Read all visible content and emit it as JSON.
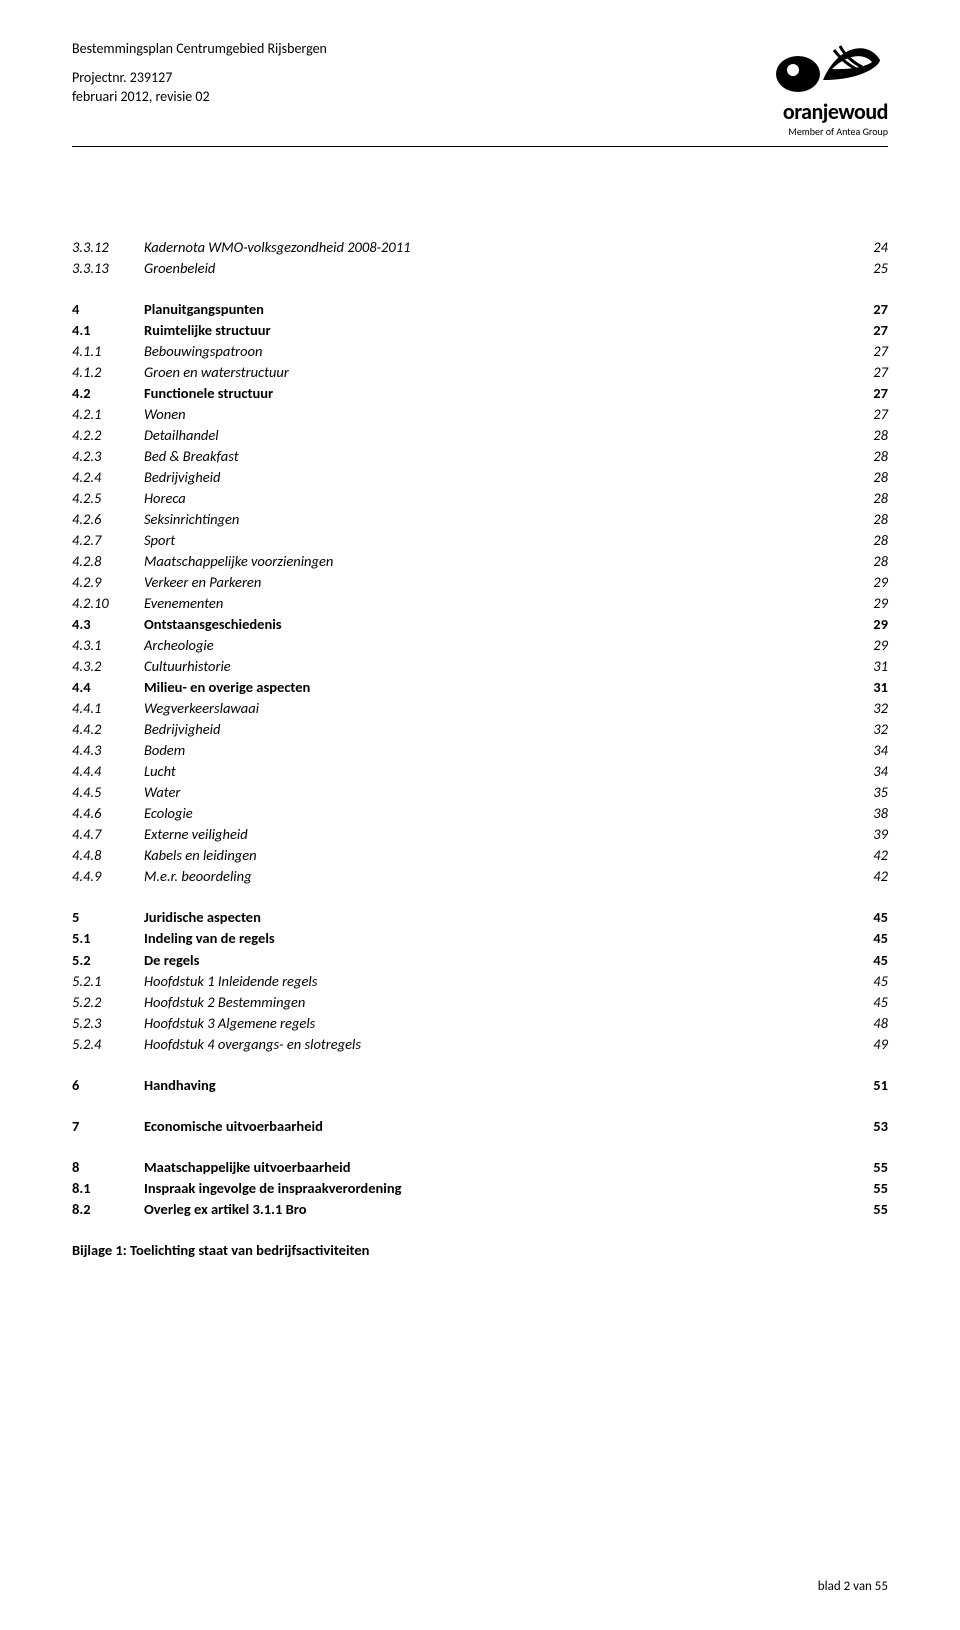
{
  "header": {
    "title": "Bestemmingsplan Centrumgebied Rijsbergen",
    "project": "Projectnr. 239127",
    "date": "februari 2012, revisie 02"
  },
  "logo": {
    "brand": "oranjewoud",
    "sub": "Member of Antea Group",
    "icon_color": "#000000"
  },
  "footer": {
    "text": "blad 2 van 55"
  },
  "toc": [
    {
      "num": "3.3.12",
      "title": "Kadernota WMO-volksgezondheid 2008-2011",
      "page": "24",
      "level": "sub"
    },
    {
      "num": "3.3.13",
      "title": "Groenbeleid",
      "page": "25",
      "level": "sub"
    },
    {
      "num": "4",
      "title": "Planuitgangspunten",
      "page": "27",
      "level": "chapter"
    },
    {
      "num": "4.1",
      "title": "Ruimtelijke structuur",
      "page": "27",
      "level": "section"
    },
    {
      "num": "4.1.1",
      "title": "Bebouwingspatroon",
      "page": "27",
      "level": "sub"
    },
    {
      "num": "4.1.2",
      "title": "Groen en waterstructuur",
      "page": "27",
      "level": "sub"
    },
    {
      "num": "4.2",
      "title": "Functionele structuur",
      "page": "27",
      "level": "section"
    },
    {
      "num": "4.2.1",
      "title": "Wonen",
      "page": "27",
      "level": "sub"
    },
    {
      "num": "4.2.2",
      "title": "Detailhandel",
      "page": "28",
      "level": "sub"
    },
    {
      "num": "4.2.3",
      "title": "Bed & Breakfast",
      "page": "28",
      "level": "sub"
    },
    {
      "num": "4.2.4",
      "title": "Bedrijvigheid",
      "page": "28",
      "level": "sub"
    },
    {
      "num": "4.2.5",
      "title": "Horeca",
      "page": "28",
      "level": "sub"
    },
    {
      "num": "4.2.6",
      "title": "Seksinrichtingen",
      "page": "28",
      "level": "sub"
    },
    {
      "num": "4.2.7",
      "title": "Sport",
      "page": "28",
      "level": "sub"
    },
    {
      "num": "4.2.8",
      "title": "Maatschappelijke voorzieningen",
      "page": "28",
      "level": "sub"
    },
    {
      "num": "4.2.9",
      "title": "Verkeer en Parkeren",
      "page": "29",
      "level": "sub"
    },
    {
      "num": "4.2.10",
      "title": "Evenementen",
      "page": "29",
      "level": "sub"
    },
    {
      "num": "4.3",
      "title": "Ontstaansgeschiedenis",
      "page": "29",
      "level": "section"
    },
    {
      "num": "4.3.1",
      "title": "Archeologie",
      "page": "29",
      "level": "sub"
    },
    {
      "num": "4.3.2",
      "title": "Cultuurhistorie",
      "page": "31",
      "level": "sub"
    },
    {
      "num": "4.4",
      "title": "Milieu- en overige aspecten",
      "page": "31",
      "level": "section"
    },
    {
      "num": "4.4.1",
      "title": "Wegverkeerslawaai",
      "page": "32",
      "level": "sub"
    },
    {
      "num": "4.4.2",
      "title": "Bedrijvigheid",
      "page": "32",
      "level": "sub"
    },
    {
      "num": "4.4.3",
      "title": "Bodem",
      "page": "34",
      "level": "sub"
    },
    {
      "num": "4.4.4",
      "title": "Lucht",
      "page": "34",
      "level": "sub"
    },
    {
      "num": "4.4.5",
      "title": "Water",
      "page": "35",
      "level": "sub"
    },
    {
      "num": "4.4.6",
      "title": "Ecologie",
      "page": "38",
      "level": "sub"
    },
    {
      "num": "4.4.7",
      "title": "Externe veiligheid",
      "page": "39",
      "level": "sub"
    },
    {
      "num": "4.4.8",
      "title": "Kabels en leidingen",
      "page": "42",
      "level": "sub"
    },
    {
      "num": "4.4.9",
      "title": "M.e.r. beoordeling",
      "page": "42",
      "level": "sub"
    },
    {
      "num": "5",
      "title": "Juridische aspecten",
      "page": "45",
      "level": "chapter"
    },
    {
      "num": "5.1",
      "title": "Indeling van de regels",
      "page": "45",
      "level": "section"
    },
    {
      "num": "5.2",
      "title": "De regels",
      "page": "45",
      "level": "section"
    },
    {
      "num": "5.2.1",
      "title": "Hoofdstuk 1 Inleidende regels",
      "page": "45",
      "level": "sub"
    },
    {
      "num": "5.2.2",
      "title": "Hoofdstuk 2 Bestemmingen",
      "page": "45",
      "level": "sub"
    },
    {
      "num": "5.2.3",
      "title": "Hoofdstuk 3 Algemene regels",
      "page": "48",
      "level": "sub"
    },
    {
      "num": "5.2.4",
      "title": "Hoofdstuk 4 overgangs- en slotregels",
      "page": "49",
      "level": "sub"
    },
    {
      "num": "6",
      "title": "Handhaving",
      "page": "51",
      "level": "chapter"
    },
    {
      "num": "7",
      "title": "Economische uitvoerbaarheid",
      "page": "53",
      "level": "chapter"
    },
    {
      "num": "8",
      "title": "Maatschappelijke uitvoerbaarheid",
      "page": "55",
      "level": "chapter"
    },
    {
      "num": "8.1",
      "title": "Inspraak ingevolge de inspraakverordening",
      "page": "55",
      "level": "section"
    },
    {
      "num": "8.2",
      "title": "Overleg ex artikel 3.1.1 Bro",
      "page": "55",
      "level": "section"
    },
    {
      "num": "",
      "title": "Bijlage 1: Toelichting staat van bedrijfsactiviteiten",
      "page": "",
      "level": "bijlage"
    }
  ]
}
